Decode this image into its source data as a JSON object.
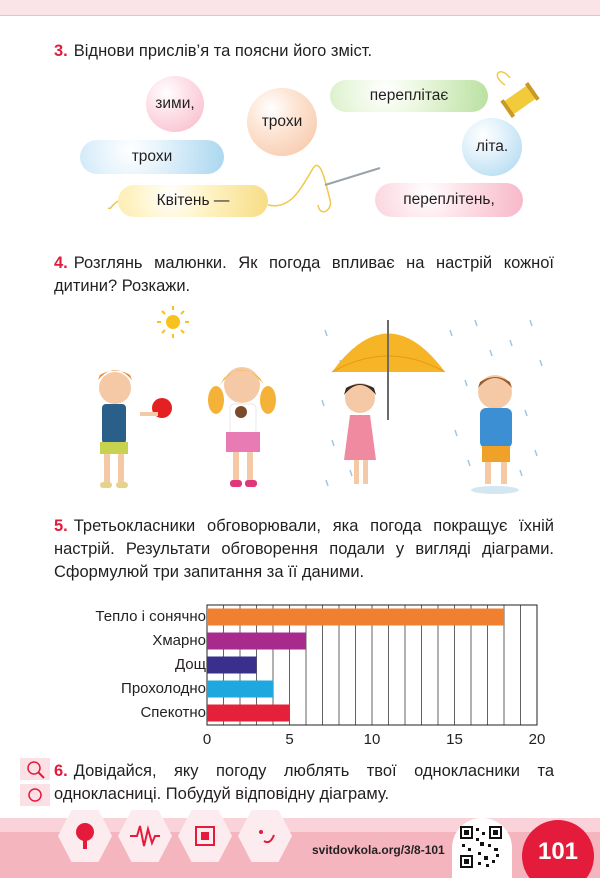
{
  "task3": {
    "number": "3.",
    "text": "Віднови прислів’я та поясни його зміст.",
    "words": {
      "w1": "зими,",
      "w2": "трохи",
      "w3": "переплітає",
      "w4": "трохи",
      "w5": "літа.",
      "w6": "Квітень —",
      "w7": "переплітень,"
    }
  },
  "task4": {
    "number": "4.",
    "text": "Розглянь малюнки. Як погода впливає на настрій кожної дитини? Розкажи."
  },
  "task5": {
    "number": "5.",
    "text": "Третьокласники обговорювали, яка погода покращує їхній настрій. Результати обговорення подали у вигляді діаграми. Сформулюй три запитання за її даними."
  },
  "task6": {
    "number": "6.",
    "text": "Довідайся, яку погоду люблять твої однокласники та однокласниці. Побудуй відповідну діаграму."
  },
  "chart_data": {
    "type": "bar",
    "orientation": "horizontal",
    "categories": [
      "Тепло і сонячно",
      "Хмарно",
      "Дощ",
      "Прохолодно",
      "Спекотно"
    ],
    "values": [
      18,
      6,
      3,
      4,
      5
    ],
    "colors": [
      "#f08030",
      "#a82a8c",
      "#3a2f8c",
      "#1fa8e0",
      "#e4203a"
    ],
    "xlim": [
      0,
      20
    ],
    "xticks": [
      "0",
      "5",
      "10",
      "15",
      "20"
    ],
    "grid": true
  },
  "footer": {
    "url": "svitdovkola.org/3/8-101",
    "page_number": "101"
  },
  "colors": {
    "accent": "#e41b3b",
    "footer": "#f5b5bf"
  }
}
